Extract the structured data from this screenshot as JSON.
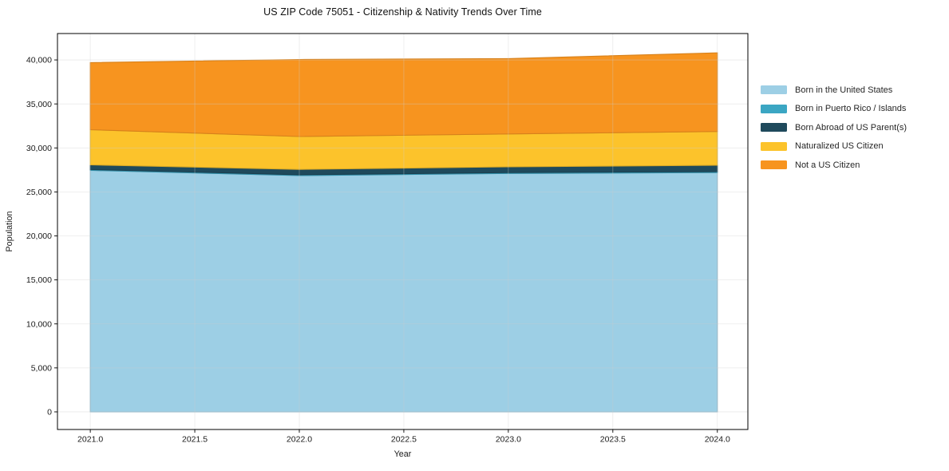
{
  "title": "US ZIP Code 75051 - Citizenship & Nativity Trends Over Time",
  "chart_data": {
    "type": "area",
    "stacked": true,
    "title": "US ZIP Code 75051 - Citizenship & Nativity Trends Over Time",
    "xlabel": "Year",
    "ylabel": "Population",
    "x": [
      2021,
      2022,
      2023,
      2024
    ],
    "series": [
      {
        "name": "Born in the United States",
        "color": "#9dcfe5",
        "values": [
          27450,
          26850,
          27100,
          27200
        ]
      },
      {
        "name": "Born in Puerto Rico / Islands",
        "color": "#3ba6c3",
        "values": [
          100,
          100,
          100,
          100
        ]
      },
      {
        "name": "Born Abroad of US Parent(s)",
        "color": "#1f4a5c",
        "values": [
          530,
          610,
          650,
          730
        ]
      },
      {
        "name": "Naturalized US Citizen",
        "color": "#fcc32b",
        "values": [
          3990,
          3740,
          3740,
          3840
        ]
      },
      {
        "name": "Not a US Citizen",
        "color": "#f7941f",
        "values": [
          7630,
          8750,
          8560,
          8930
        ]
      }
    ],
    "totals": [
      39700,
      40050,
      40150,
      40800
    ],
    "xlim": [
      2020.843,
      2024.146
    ],
    "ylim": [
      -2000,
      43000
    ],
    "xticks": [
      2021.0,
      2021.5,
      2022.0,
      2022.5,
      2023.0,
      2023.5,
      2024.0
    ],
    "yticks": [
      0,
      5000,
      10000,
      15000,
      20000,
      25000,
      30000,
      35000,
      40000
    ],
    "grid": true,
    "legend_position": "right-outside",
    "background": "#ffffff",
    "spine_color": "#000000",
    "grid_color": "#cccccc"
  }
}
